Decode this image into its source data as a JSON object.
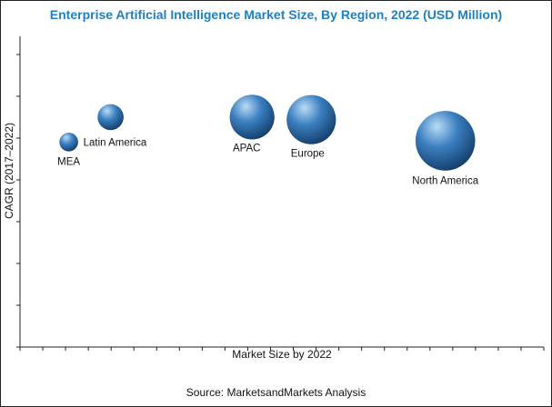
{
  "colors": {
    "title": "#1f7fc1",
    "bubble_highlight": "#b9dcf6",
    "bubble_mid": "#3b7fc0",
    "bubble_dark": "#123b67",
    "axis": "#222222"
  },
  "chart_data": {
    "type": "scatter",
    "variant": "bubble",
    "title": "Enterprise Artificial Intelligence Market Size, By Region, 2022 (USD Million)",
    "xlabel": "Market Size by 2022",
    "ylabel": "CAGR (2017–2022)",
    "xlim": [
      0,
      1
    ],
    "ylim": [
      0,
      1
    ],
    "tick_labels_shown": false,
    "grid": false,
    "legend": "none",
    "source": "Source: MarketsandMarkets Analysis",
    "points": [
      {
        "label": "MEA",
        "x": 0.093,
        "y": 0.66,
        "size": 0.25
      },
      {
        "label": "Latin America",
        "x": 0.173,
        "y": 0.74,
        "size": 0.35
      },
      {
        "label": "APAC",
        "x": 0.443,
        "y": 0.74,
        "size": 0.6
      },
      {
        "label": "Europe",
        "x": 0.556,
        "y": 0.732,
        "size": 0.66
      },
      {
        "label": "North America",
        "x": 0.812,
        "y": 0.664,
        "size": 0.8
      }
    ]
  }
}
